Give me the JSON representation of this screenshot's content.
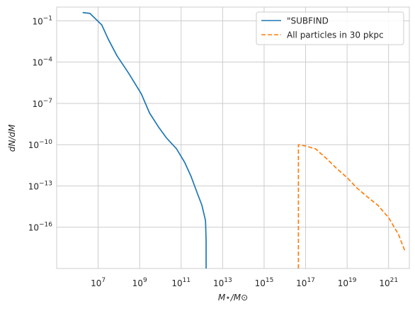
{
  "chart_data": {
    "type": "line",
    "title": "",
    "xlabel": "M⋆/M⊙",
    "ylabel": "dN/dM",
    "xscale": "log",
    "yscale": "log",
    "grid": true,
    "legend_position": "top-right",
    "xlim": [
      100000.0,
      1e+22
    ],
    "ylim": [
      1e-19,
      1.0
    ],
    "x_ticks": [
      {
        "value": 10000000.0,
        "base": "10",
        "exp": "7"
      },
      {
        "value": 1000000000.0,
        "base": "10",
        "exp": "9"
      },
      {
        "value": 100000000000.0,
        "base": "10",
        "exp": "11"
      },
      {
        "value": 10000000000000.0,
        "base": "10",
        "exp": "13"
      },
      {
        "value": 1000000000000000.0,
        "base": "10",
        "exp": "15"
      },
      {
        "value": 1e+17,
        "base": "10",
        "exp": "17"
      },
      {
        "value": 1e+19,
        "base": "10",
        "exp": "19"
      },
      {
        "value": 1e+21,
        "base": "10",
        "exp": "21"
      }
    ],
    "y_ticks": [
      {
        "value": 0.1,
        "base": "10",
        "exp": "−1"
      },
      {
        "value": 0.0001,
        "base": "10",
        "exp": "−4"
      },
      {
        "value": 1e-07,
        "base": "10",
        "exp": "−7"
      },
      {
        "value": 1e-10,
        "base": "10",
        "exp": "−10"
      },
      {
        "value": 1e-13,
        "base": "10",
        "exp": "−13"
      },
      {
        "value": 1e-16,
        "base": "10",
        "exp": "−16"
      }
    ],
    "series": [
      {
        "name": "\"SUBFIND",
        "color": "#1f77b4",
        "style": "solid",
        "points": [
          [
            1800000.0,
            0.4
          ],
          [
            4000000.0,
            0.35
          ],
          [
            15000000.0,
            0.05
          ],
          [
            30000000.0,
            0.005
          ],
          [
            80000000.0,
            0.0003
          ],
          [
            300000000.0,
            1.5e-05
          ],
          [
            1200000000.0,
            5e-07
          ],
          [
            3000000000.0,
            2e-08
          ],
          [
            8000000000.0,
            2e-09
          ],
          [
            20000000000.0,
            3e-10
          ],
          [
            60000000000.0,
            5e-11
          ],
          [
            150000000000.0,
            5e-12
          ],
          [
            300000000000.0,
            5e-13
          ],
          [
            600000000000.0,
            3e-14
          ],
          [
            1000000000000.0,
            4e-15
          ],
          [
            1500000000000.0,
            3e-16
          ],
          [
            1600000000000.0,
            1e-17
          ],
          [
            1600000000000.0,
            1e-19
          ]
        ]
      },
      {
        "name": "All particles in 30 pkpc",
        "color": "#ff7f0e",
        "style": "dashed",
        "points": [
          [
            4.5e+16,
            1e-19
          ],
          [
            4.5e+16,
            1e-10
          ],
          [
            1e+17,
            8e-11
          ],
          [
            3e+17,
            5e-11
          ],
          [
            1e+18,
            1e-11
          ],
          [
            3e+18,
            2e-12
          ],
          [
            1e+19,
            4e-13
          ],
          [
            3e+19,
            7e-14
          ],
          [
            1e+20,
            1.5e-14
          ],
          [
            3e+20,
            4e-15
          ],
          [
            1e+21,
            5e-16
          ],
          [
            3e+21,
            3e-17
          ],
          [
            6e+21,
            2e-18
          ]
        ]
      }
    ]
  }
}
